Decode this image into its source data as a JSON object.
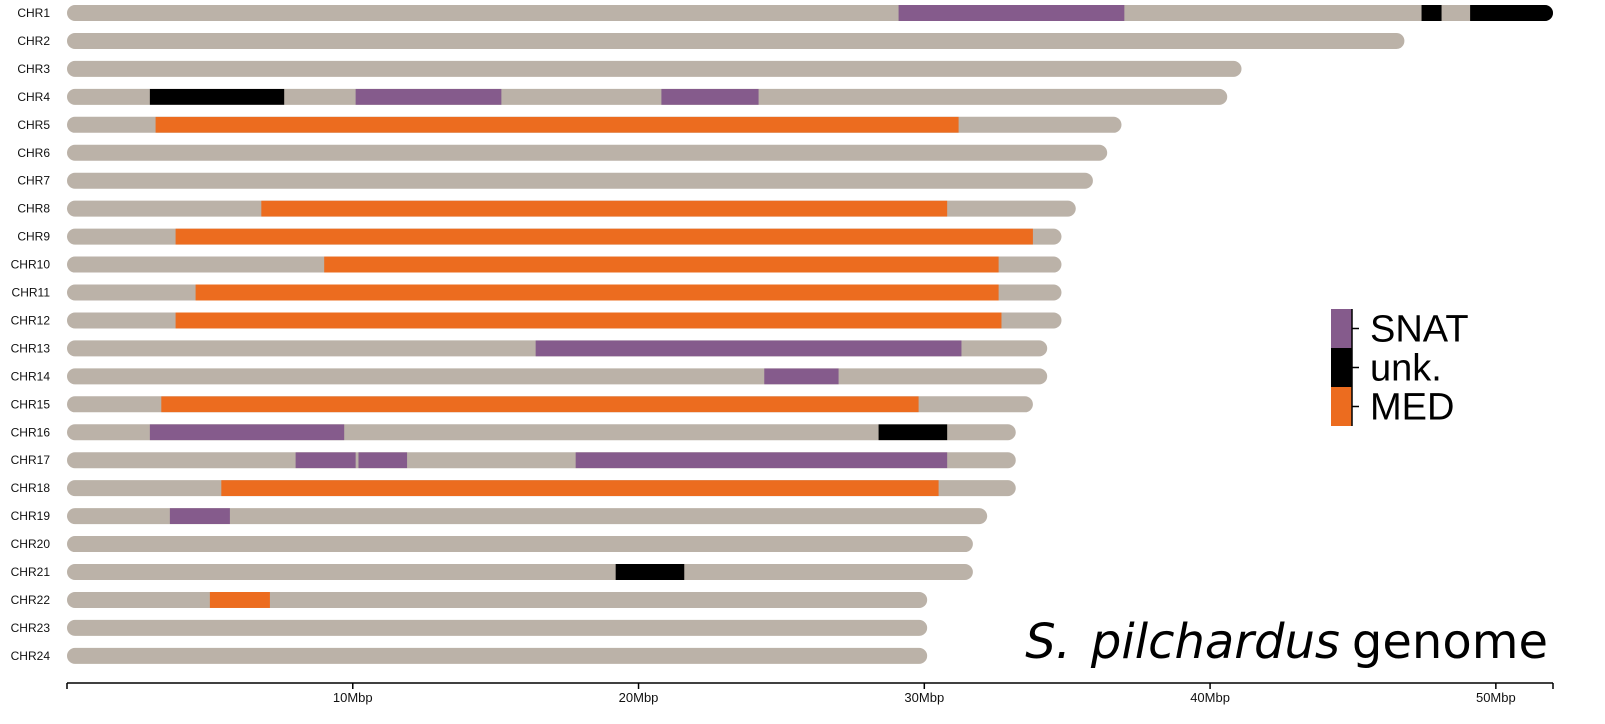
{
  "chart_data": {
    "type": "genome-karyotype",
    "title_species": "S.",
    "title_species2": "pilchardus",
    "title_suffix": "genome",
    "xlim": [
      0,
      52
    ],
    "x_unit": "Mbp",
    "ticks": [
      {
        "value": 10,
        "label": "10Mbp"
      },
      {
        "value": 20,
        "label": "20Mbp"
      },
      {
        "value": 30,
        "label": "30Mbp"
      },
      {
        "value": 40,
        "label": "40Mbp"
      },
      {
        "value": 50,
        "label": "50Mbp"
      }
    ],
    "colors": {
      "chromosome": "#bbb2a8",
      "SNAT": "#855b8c",
      "unk.": "#000000",
      "MED": "#ec6c1f"
    },
    "legend": [
      {
        "key": "SNAT",
        "label": "SNAT"
      },
      {
        "key": "unk.",
        "label": "unk."
      },
      {
        "key": "MED",
        "label": "MED"
      }
    ],
    "chromosomes": [
      {
        "name": "CHR1",
        "length": 52.0,
        "segments": [
          {
            "start": 29.1,
            "end": 37.0,
            "type": "SNAT"
          },
          {
            "start": 47.4,
            "end": 48.1,
            "type": "unk."
          },
          {
            "start": 49.1,
            "end": 52.0,
            "type": "unk."
          }
        ]
      },
      {
        "name": "CHR2",
        "length": 46.8,
        "segments": []
      },
      {
        "name": "CHR3",
        "length": 41.1,
        "segments": []
      },
      {
        "name": "CHR4",
        "length": 40.6,
        "segments": [
          {
            "start": 2.9,
            "end": 7.6,
            "type": "unk."
          },
          {
            "start": 10.1,
            "end": 15.2,
            "type": "SNAT"
          },
          {
            "start": 20.8,
            "end": 24.2,
            "type": "SNAT"
          }
        ]
      },
      {
        "name": "CHR5",
        "length": 36.9,
        "segments": [
          {
            "start": 3.1,
            "end": 31.2,
            "type": "MED"
          }
        ]
      },
      {
        "name": "CHR6",
        "length": 36.4,
        "segments": []
      },
      {
        "name": "CHR7",
        "length": 35.9,
        "segments": []
      },
      {
        "name": "CHR8",
        "length": 35.3,
        "segments": [
          {
            "start": 6.8,
            "end": 30.8,
            "type": "MED"
          }
        ]
      },
      {
        "name": "CHR9",
        "length": 34.8,
        "segments": [
          {
            "start": 3.8,
            "end": 33.8,
            "type": "MED"
          }
        ]
      },
      {
        "name": "CHR10",
        "length": 34.8,
        "segments": [
          {
            "start": 9.0,
            "end": 32.6,
            "type": "MED"
          }
        ]
      },
      {
        "name": "CHR11",
        "length": 34.8,
        "segments": [
          {
            "start": 4.5,
            "end": 32.6,
            "type": "MED"
          }
        ]
      },
      {
        "name": "CHR12",
        "length": 34.8,
        "segments": [
          {
            "start": 3.8,
            "end": 32.7,
            "type": "MED"
          }
        ]
      },
      {
        "name": "CHR13",
        "length": 34.3,
        "segments": [
          {
            "start": 16.4,
            "end": 31.3,
            "type": "SNAT"
          }
        ]
      },
      {
        "name": "CHR14",
        "length": 34.3,
        "segments": [
          {
            "start": 24.4,
            "end": 27.0,
            "type": "SNAT"
          }
        ]
      },
      {
        "name": "CHR15",
        "length": 33.8,
        "segments": [
          {
            "start": 3.3,
            "end": 29.8,
            "type": "MED"
          }
        ]
      },
      {
        "name": "CHR16",
        "length": 33.2,
        "segments": [
          {
            "start": 2.9,
            "end": 9.7,
            "type": "SNAT"
          },
          {
            "start": 28.4,
            "end": 30.8,
            "type": "unk."
          }
        ]
      },
      {
        "name": "CHR17",
        "length": 33.2,
        "segments": [
          {
            "start": 8.0,
            "end": 10.1,
            "type": "SNAT"
          },
          {
            "start": 10.2,
            "end": 11.9,
            "type": "SNAT"
          },
          {
            "start": 17.8,
            "end": 30.8,
            "type": "SNAT"
          }
        ]
      },
      {
        "name": "CHR18",
        "length": 33.2,
        "segments": [
          {
            "start": 5.4,
            "end": 30.5,
            "type": "MED"
          }
        ]
      },
      {
        "name": "CHR19",
        "length": 32.2,
        "segments": [
          {
            "start": 3.6,
            "end": 5.7,
            "type": "SNAT"
          }
        ]
      },
      {
        "name": "CHR20",
        "length": 31.7,
        "segments": []
      },
      {
        "name": "CHR21",
        "length": 31.7,
        "segments": [
          {
            "start": 19.2,
            "end": 21.6,
            "type": "unk."
          }
        ]
      },
      {
        "name": "CHR22",
        "length": 30.1,
        "segments": [
          {
            "start": 5.0,
            "end": 7.1,
            "type": "MED"
          }
        ]
      },
      {
        "name": "CHR23",
        "length": 30.1,
        "segments": []
      },
      {
        "name": "CHR24",
        "length": 30.1,
        "segments": []
      }
    ]
  }
}
